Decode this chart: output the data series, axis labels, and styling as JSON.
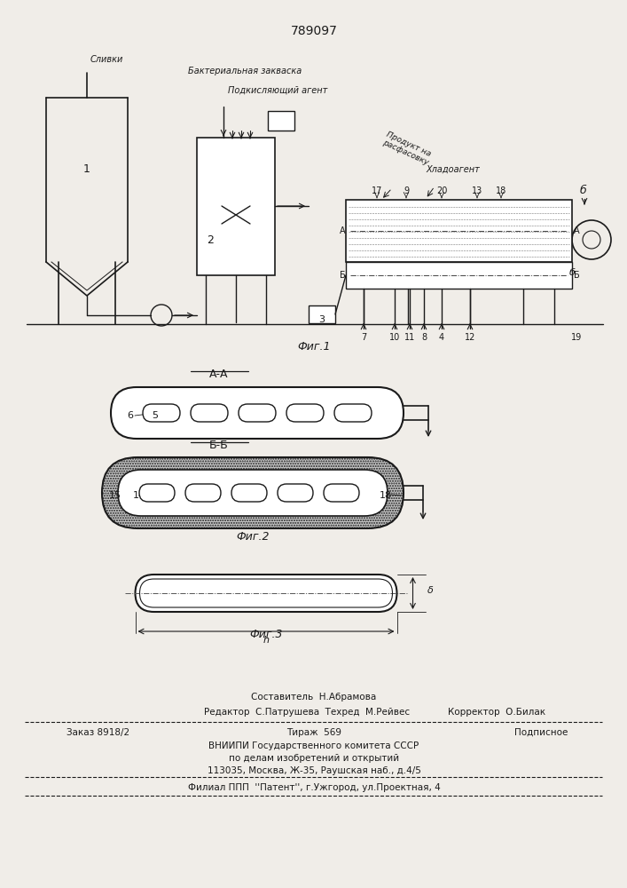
{
  "patent_number": "789097",
  "bg_color": "#f0ede8",
  "line_color": "#1a1a1a",
  "fig1_label": "Фиг.1",
  "fig2_label": "Фиг.2",
  "fig3_label": "Фиг.3",
  "section_aa": "А-А",
  "section_bb": "Б-Б",
  "label_slivki": "Сливки",
  "label_podkisl": "Подкисляющий агент",
  "label_bakt": "Бактериальная закваска",
  "label_produkt": "Продукт на\nрасфасовку",
  "label_hlad": "Хладоагент",
  "footer_sostavitel": "Составитель  Н.Абрамова",
  "footer_redaktor": "Редактор  С.Патрушева  Техред  М.Рейвес",
  "footer_korrektor": "Корректор  О.Билак",
  "footer_zakaz": "Заказ 8918/2",
  "footer_tirazh": "Тираж  569",
  "footer_podpisnoe": "Подписное",
  "footer_vniip": "ВНИИПИ Государственного комитета СССР",
  "footer_po_delam": "по делам изобретений и открытий",
  "footer_address": "113035, Москва, Ж-35, Раушская наб., д.4/5",
  "footer_filial": "Филиал ППП  ''Патент'', г.Ужгород, ул.Проектная, 4"
}
